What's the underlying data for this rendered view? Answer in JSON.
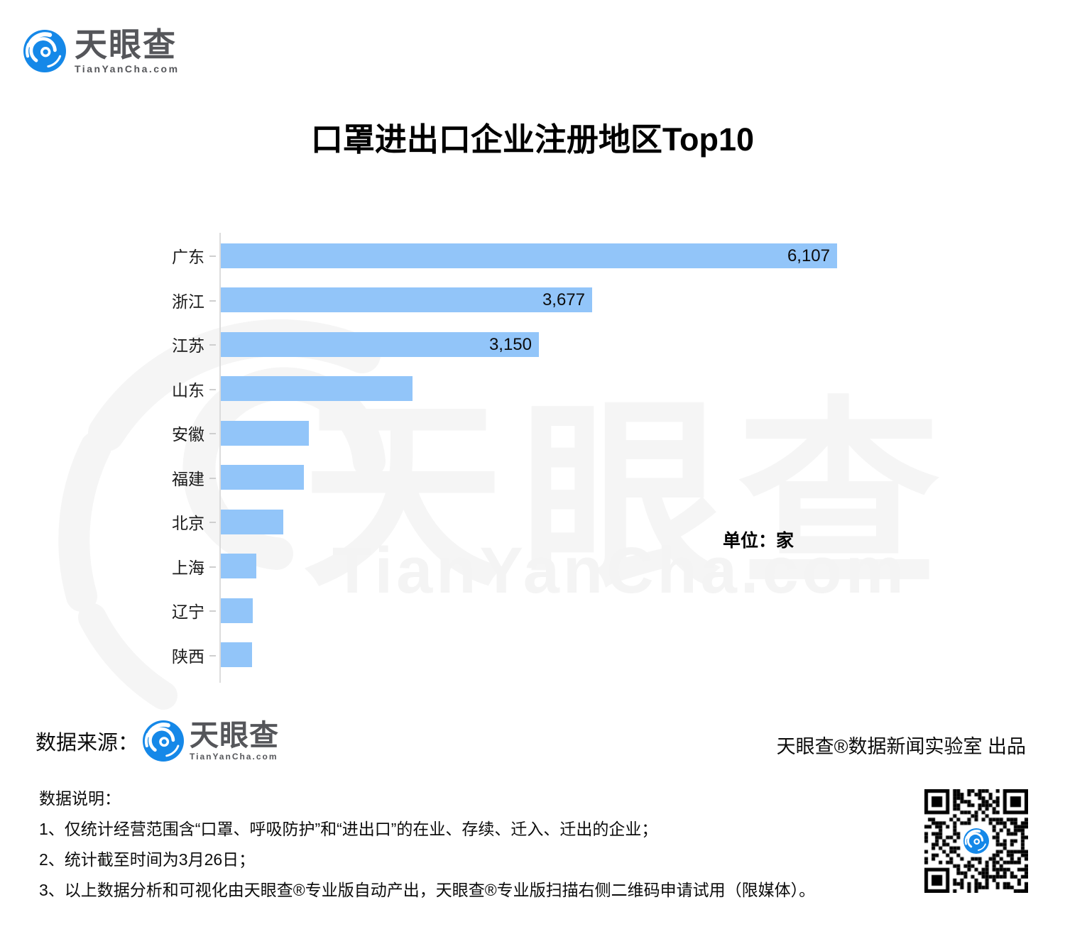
{
  "brand": {
    "logo_text": "天眼查",
    "logo_domain": "TianYanCha.com"
  },
  "title": "口罩进出口企业注册地区Top10",
  "unit_label": "单位：家",
  "watermark": {
    "text": "天眼查",
    "domain": "TianYanCha.com"
  },
  "source": {
    "label": "数据来源：",
    "logo_text": "天眼查",
    "logo_domain": "TianYanCha.com",
    "producer": "天眼查®数据新闻实验室 出品"
  },
  "notes": {
    "heading": "数据说明：",
    "lines": [
      "1、仅统计经营范围含“口罩、呼吸防护”和“进出口”的在业、存续、迁入、迁出的企业；",
      "2、统计截至时间为3月26日；",
      "3、以上数据分析和可视化由天眼查®专业版自动产出，天眼查®专业版扫描右侧二维码申请试用（限媒体）。"
    ]
  },
  "colors": {
    "bar": "#92C5F9",
    "brand_blue": "#1588E8",
    "logo_gray": "#55565A",
    "watermark": "#F5F5F5",
    "axis": "#DCDCDC",
    "qr_black": "#000000"
  },
  "chart_data": {
    "type": "bar",
    "orientation": "horizontal",
    "title": "口罩进出口企业注册地区Top10",
    "unit": "家",
    "categories": [
      "广东",
      "浙江",
      "江苏",
      "山东",
      "安徽",
      "福建",
      "北京",
      "上海",
      "辽宁",
      "陕西"
    ],
    "values": [
      6107,
      3677,
      3150,
      1900,
      870,
      825,
      620,
      350,
      315,
      310
    ],
    "value_labels_shown": [
      "6,107",
      "3,677",
      "3,150",
      "",
      "",
      "",
      "",
      "",
      "",
      ""
    ],
    "xlim": [
      0,
      6107
    ],
    "grid": false,
    "value_axis_visible": false,
    "legend": "none"
  }
}
